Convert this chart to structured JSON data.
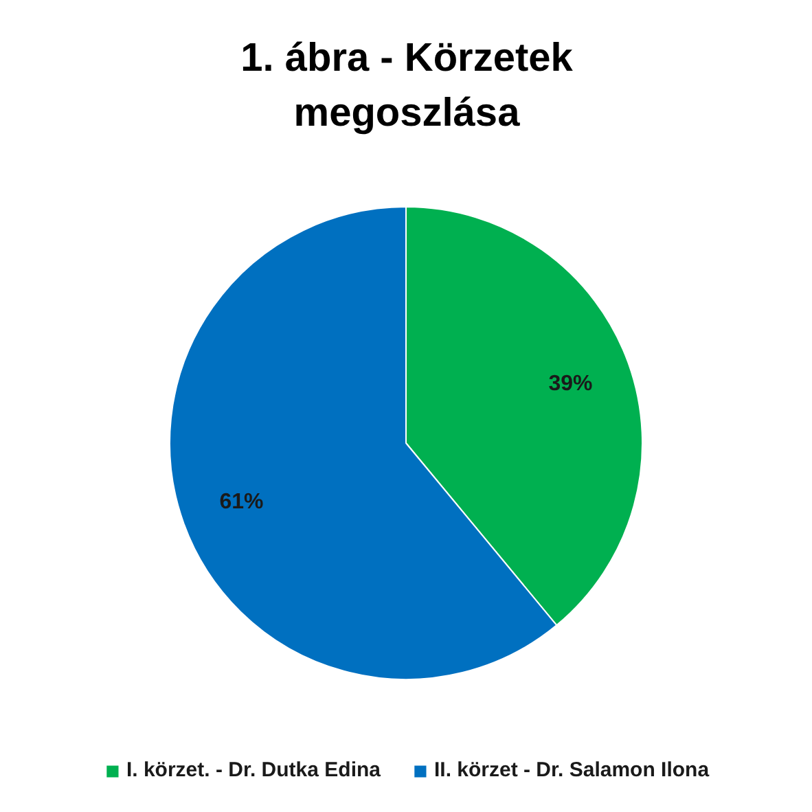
{
  "chart_data": {
    "type": "pie",
    "title": "1. ábra - Körzetek megoszlása",
    "categories": [
      "I. körzet. - Dr. Dutka Edina",
      "II. körzet - Dr. Salamon Ilona"
    ],
    "values": [
      39,
      61
    ],
    "colors": [
      "#00b050",
      "#0070c0"
    ],
    "value_labels": [
      "39%",
      "61%"
    ],
    "legend": "bottom"
  }
}
